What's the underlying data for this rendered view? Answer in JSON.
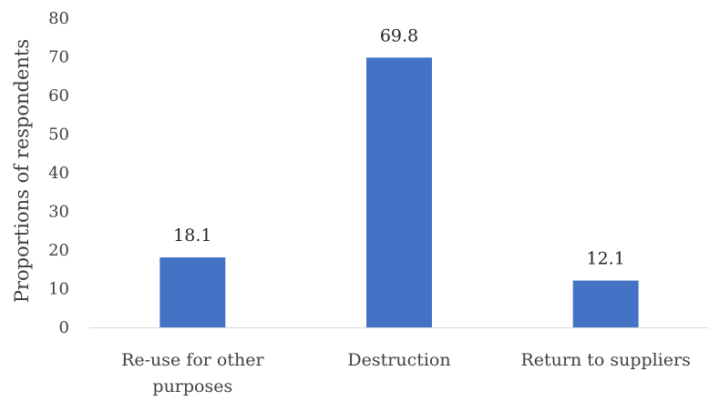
{
  "chart_data": {
    "type": "bar",
    "categories": [
      [
        "Re-use for other",
        "purposes"
      ],
      [
        "Destruction"
      ],
      [
        "Return to suppliers"
      ]
    ],
    "values": [
      18.1,
      69.8,
      12.1
    ],
    "data_labels": [
      "18.1",
      "69.8",
      "12.1"
    ],
    "title": "",
    "xlabel": "",
    "ylabel": "Proportions of respondents",
    "ylim": [
      0,
      80
    ],
    "yticks": [
      0,
      10,
      20,
      30,
      40,
      50,
      60,
      70,
      80
    ],
    "grid": false,
    "legend": "none",
    "colors": {
      "bar": "#4472C4",
      "axis": "#D9D9D9",
      "text": "#404040"
    }
  }
}
